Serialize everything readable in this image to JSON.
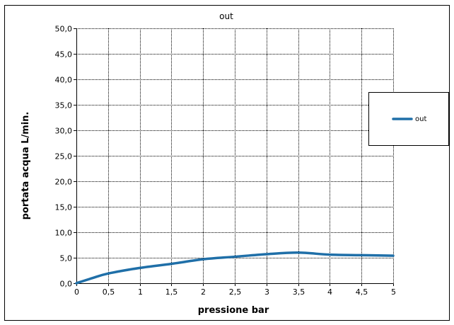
{
  "chart_data": {
    "type": "line",
    "title": "out",
    "xlabel": "pressione bar",
    "ylabel": "portata acqua  L/min.",
    "xlim": [
      0,
      5
    ],
    "ylim": [
      0,
      50
    ],
    "x_ticks": [
      "0",
      "0,5",
      "1",
      "1,5",
      "2",
      "2,5",
      "3",
      "3,5",
      "4",
      "4,5",
      "5"
    ],
    "y_ticks": [
      "0,0",
      "5,0",
      "10,0",
      "15,0",
      "20,0",
      "25,0",
      "30,0",
      "35,0",
      "40,0",
      "45,0",
      "50,0"
    ],
    "grid": true,
    "legend_position": "right",
    "series": [
      {
        "name": "out",
        "color": "#1f6fa8",
        "x": [
          0,
          0.25,
          0.5,
          1,
          1.5,
          2,
          2.5,
          3,
          3.5,
          4,
          4.5,
          5
        ],
        "y": [
          0.0,
          1.0,
          1.9,
          3.0,
          3.8,
          4.7,
          5.2,
          5.7,
          6.0,
          5.6,
          5.5,
          5.4
        ]
      }
    ]
  }
}
